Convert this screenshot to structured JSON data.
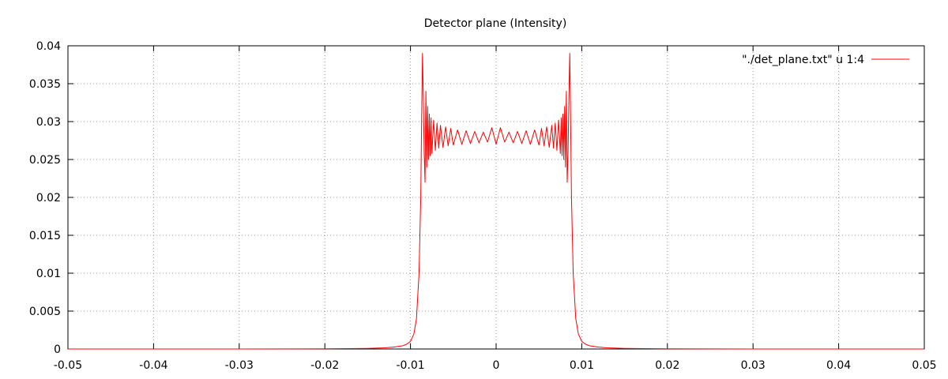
{
  "chart_data": {
    "type": "line",
    "title": "Detector plane (Intensity)",
    "xlabel": "",
    "ylabel": "",
    "xlim": [
      -0.05,
      0.05
    ],
    "ylim": [
      0,
      0.04
    ],
    "x_ticks": [
      -0.05,
      -0.04,
      -0.03,
      -0.02,
      -0.01,
      0,
      0.01,
      0.02,
      0.03,
      0.04,
      0.05
    ],
    "x_tick_labels": [
      "-0.05",
      "-0.04",
      "-0.03",
      "-0.02",
      "-0.01",
      "0",
      "0.01",
      "0.02",
      "0.03",
      "0.04",
      "0.05"
    ],
    "y_ticks": [
      0,
      0.005,
      0.01,
      0.015,
      0.02,
      0.025,
      0.03,
      0.035,
      0.04
    ],
    "y_tick_labels": [
      "0",
      "0.005",
      "0.01",
      "0.015",
      "0.02",
      "0.025",
      "0.03",
      "0.035",
      "0.04"
    ],
    "grid": true,
    "legend_position": "top-right",
    "series": [
      {
        "name": "\"./det_plane.txt\" u 1:4",
        "color": "#ff0000",
        "x": [
          -0.05,
          -0.03,
          -0.02,
          -0.015,
          -0.013,
          -0.012,
          -0.011,
          -0.0105,
          -0.01,
          -0.0096,
          -0.0093,
          -0.009,
          -0.0088,
          -0.0087,
          -0.0086,
          -0.0085,
          -0.0084,
          -0.0083,
          -0.0082,
          -0.0081,
          -0.008,
          -0.0079,
          -0.0078,
          -0.0077,
          -0.0076,
          -0.0075,
          -0.0073,
          -0.0071,
          -0.0069,
          -0.0067,
          -0.0065,
          -0.0062,
          -0.0059,
          -0.0056,
          -0.0053,
          -0.005,
          -0.0045,
          -0.004,
          -0.0035,
          -0.003,
          -0.0025,
          -0.002,
          -0.0015,
          -0.001,
          -0.0005,
          0.0,
          0.0005,
          0.001,
          0.0015,
          0.002,
          0.0025,
          0.003,
          0.0035,
          0.004,
          0.0045,
          0.005,
          0.0053,
          0.0056,
          0.0059,
          0.0062,
          0.0065,
          0.0067,
          0.0069,
          0.0071,
          0.0073,
          0.0075,
          0.0076,
          0.0077,
          0.0078,
          0.0079,
          0.008,
          0.0081,
          0.0082,
          0.0083,
          0.0084,
          0.0085,
          0.0086,
          0.0087,
          0.0088,
          0.009,
          0.0093,
          0.0096,
          0.01,
          0.0105,
          0.011,
          0.012,
          0.013,
          0.015,
          0.02,
          0.03,
          0.05
        ],
        "y": [
          0.0,
          0.0,
          2e-05,
          8e-05,
          0.00015,
          0.00025,
          0.0004,
          0.0006,
          0.001,
          0.002,
          0.004,
          0.01,
          0.02,
          0.03,
          0.039,
          0.033,
          0.026,
          0.022,
          0.034,
          0.024,
          0.032,
          0.025,
          0.031,
          0.0255,
          0.0305,
          0.0258,
          0.0302,
          0.0262,
          0.0298,
          0.0265,
          0.0295,
          0.0266,
          0.0293,
          0.0268,
          0.0291,
          0.0269,
          0.0289,
          0.027,
          0.0288,
          0.0271,
          0.0287,
          0.0272,
          0.0286,
          0.0273,
          0.0292,
          0.027,
          0.0292,
          0.0273,
          0.0286,
          0.0272,
          0.0287,
          0.0271,
          0.0288,
          0.027,
          0.0289,
          0.0269,
          0.0291,
          0.0268,
          0.0293,
          0.0266,
          0.0295,
          0.0265,
          0.0298,
          0.0262,
          0.0302,
          0.0258,
          0.0305,
          0.0255,
          0.031,
          0.025,
          0.032,
          0.024,
          0.034,
          0.022,
          0.026,
          0.033,
          0.039,
          0.03,
          0.02,
          0.01,
          0.004,
          0.002,
          0.001,
          0.0006,
          0.0004,
          0.00025,
          0.00015,
          8e-05,
          2e-05,
          0.0,
          0.0
        ]
      }
    ]
  }
}
